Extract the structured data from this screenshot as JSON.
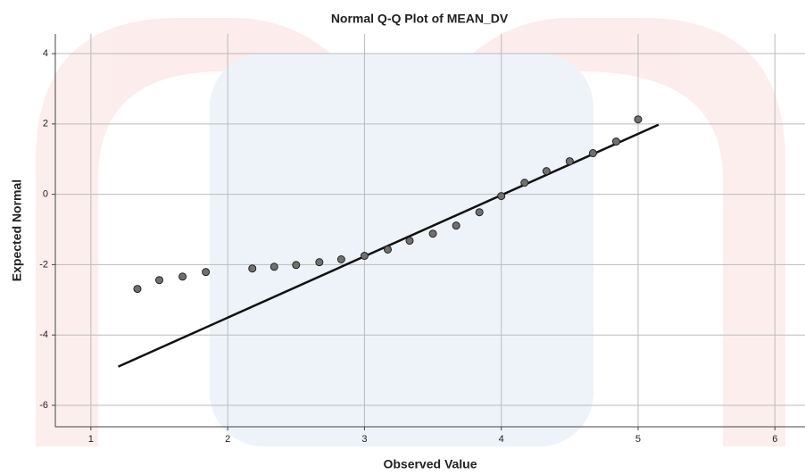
{
  "chart_data": {
    "type": "scatter",
    "title": "Normal Q-Q Plot of MEAN_DV",
    "x_label": "Observed Value",
    "y_label": "Expected Normal",
    "x": [
      1.34,
      1.5,
      1.67,
      1.84,
      2.18,
      2.34,
      2.5,
      2.67,
      2.83,
      3.0,
      3.17,
      3.33,
      3.5,
      3.67,
      3.84,
      4.0,
      4.17,
      4.33,
      4.5,
      4.67,
      4.84,
      5.0
    ],
    "values": [
      -2.69,
      -2.44,
      -2.34,
      -2.21,
      -2.11,
      -2.06,
      -2.01,
      -1.93,
      -1.85,
      -1.75,
      -1.57,
      -1.32,
      -1.12,
      -0.89,
      -0.51,
      -0.05,
      0.33,
      0.66,
      0.94,
      1.17,
      1.5,
      2.13
    ],
    "color": "#707070",
    "reference_line": {
      "x": [
        1.2,
        5.15
      ],
      "y": [
        -4.9,
        1.98
      ],
      "color": "#111111"
    },
    "xlim": [
      0.74,
      6.22
    ],
    "ylim": [
      -6.61,
      4.56
    ],
    "xticks": [
      1,
      2,
      3,
      4,
      5,
      6
    ],
    "yticks": [
      4,
      2,
      0,
      -2,
      -4,
      -6
    ],
    "grid": true
  }
}
